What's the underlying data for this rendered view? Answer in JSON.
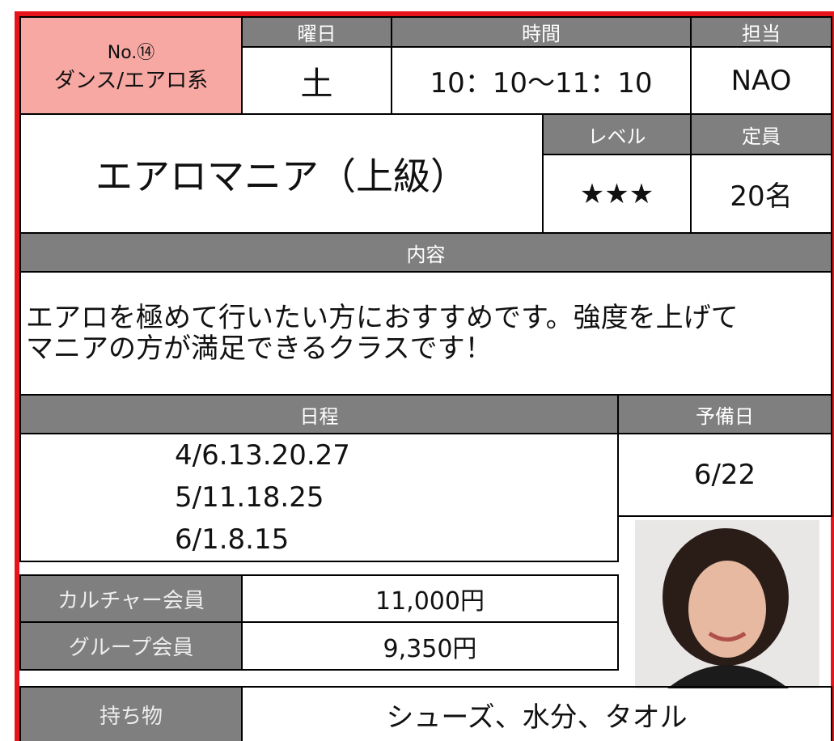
{
  "class_info": {
    "number": "No.⑭",
    "category": "ダンス/エアロ系",
    "day_label": "曜日",
    "day": "土",
    "time_label": "時間",
    "time": "10：10～11：10",
    "instructor_label": "担当",
    "instructor": "NAO"
  },
  "title": "エアロマニア（上級）",
  "level_label": "レベル",
  "level": "★★★",
  "capacity_label": "定員",
  "capacity": "20名",
  "content_label": "内容",
  "content": [
    "エアロを極めて行いたい方におすすめです。強度を上げて",
    "マニアの方が満足できるクラスです！"
  ],
  "schedule_label": "日程",
  "schedule": [
    "4/6.13.20.27",
    "5/11.18.25",
    "6/1.8.15"
  ],
  "reserve_label": "予備日",
  "reserve": "6/22",
  "fees": [
    {
      "label": "カルチャー会員",
      "price": "11,000円"
    },
    {
      "label": "グループ会員",
      "price": "9,350円"
    }
  ],
  "items_label": "持ち物",
  "items": "シューズ、水分、タオル"
}
